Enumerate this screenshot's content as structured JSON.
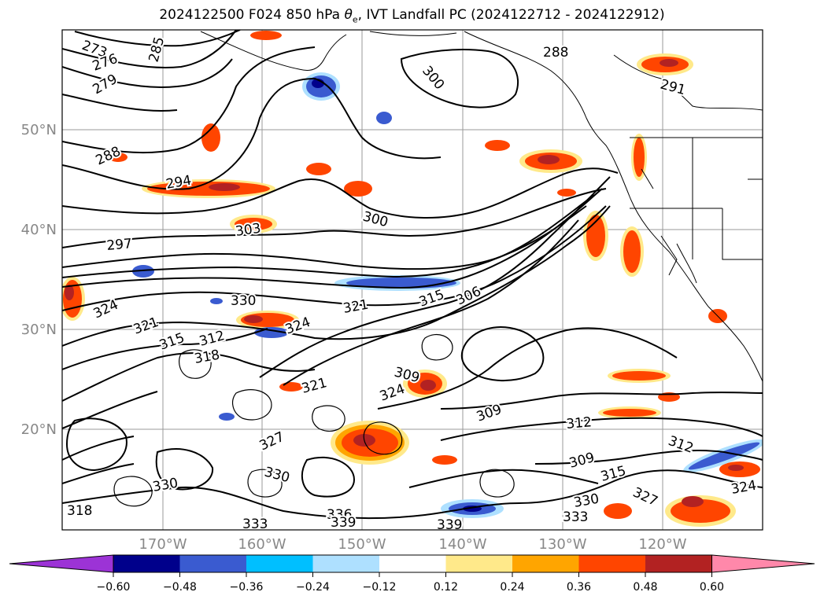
{
  "title": {
    "prefix": "2024122500 F024 850 hPa ",
    "theta": "θ",
    "theta_sub": "e",
    "suffix": ", IVT Landfall PC (2024122712 - 2024122912)"
  },
  "axes": {
    "lat_labels": [
      "50°N",
      "40°N",
      "30°N",
      "20°N"
    ],
    "lon_labels": [
      "170°W",
      "160°W",
      "150°W",
      "140°W",
      "130°W",
      "120°W"
    ]
  },
  "contour_labels": [
    "273",
    "276",
    "279",
    "285",
    "288",
    "291",
    "294",
    "297",
    "300",
    "303",
    "306",
    "309",
    "312",
    "315",
    "318",
    "321",
    "324",
    "327",
    "330",
    "333",
    "336",
    "339"
  ],
  "colorbar": {
    "colors": [
      "#9c33d6",
      "#00008b",
      "#3a5bd0",
      "#00bfff",
      "#aee0ff",
      "#ffffff",
      "#ffe98a",
      "#ffa500",
      "#ff4500",
      "#b22222",
      "#ff88aa"
    ],
    "tick_labels": [
      "−0.60",
      "−0.48",
      "−0.36",
      "−0.24",
      "−0.12",
      "0.12",
      "0.24",
      "0.36",
      "0.48",
      "0.60"
    ]
  }
}
